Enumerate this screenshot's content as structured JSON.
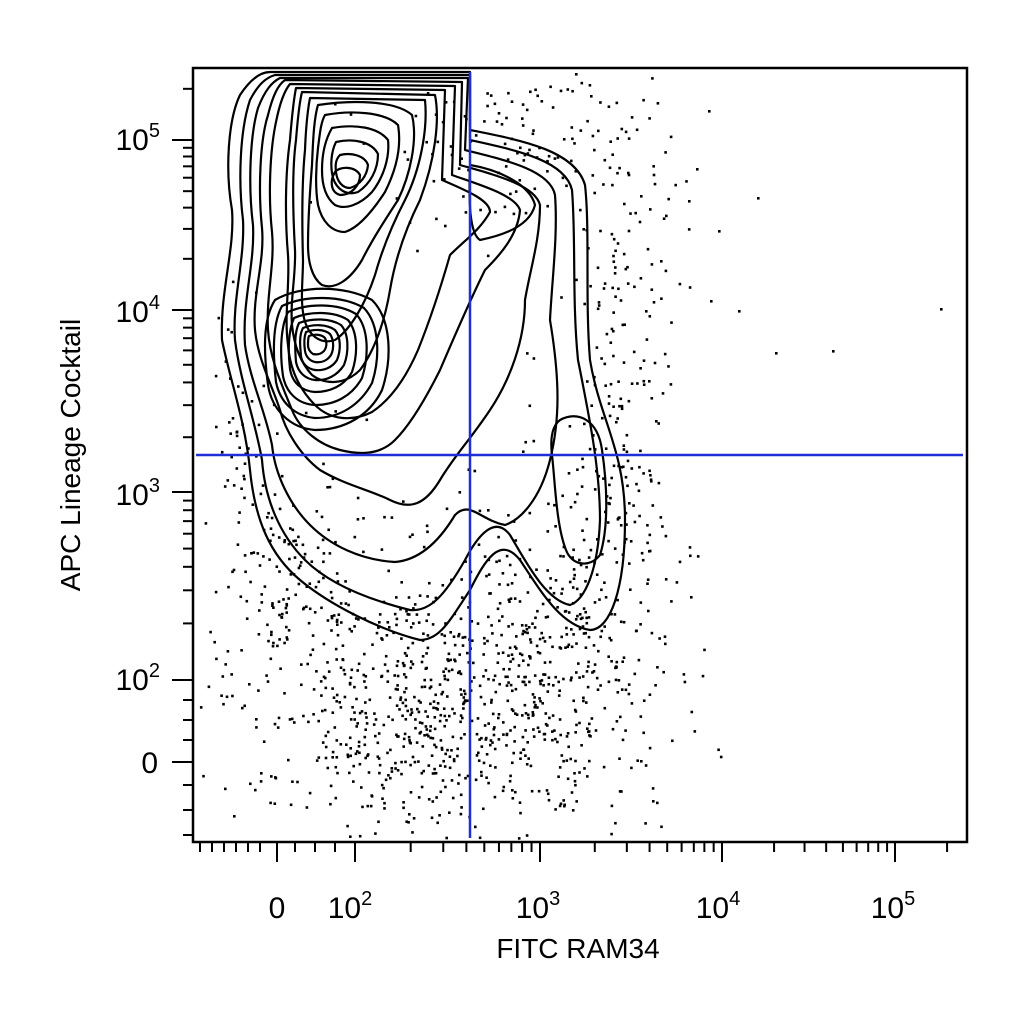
{
  "chart_data": {
    "type": "scatter",
    "subtype": "flow-cytometry-contour",
    "title": "",
    "xlabel": "FITC RAM34",
    "ylabel": "APC Lineage Cocktail",
    "xscale": "biexponential",
    "yscale": "biexponential",
    "x_ticks": [
      {
        "base": "0",
        "exp": ""
      },
      {
        "base": "10",
        "exp": "2"
      },
      {
        "base": "10",
        "exp": "3"
      },
      {
        "base": "10",
        "exp": "4"
      },
      {
        "base": "10",
        "exp": "5"
      }
    ],
    "y_ticks": [
      {
        "base": "0",
        "exp": ""
      },
      {
        "base": "10",
        "exp": "2"
      },
      {
        "base": "10",
        "exp": "3"
      },
      {
        "base": "10",
        "exp": "4"
      },
      {
        "base": "10",
        "exp": "5"
      }
    ],
    "gates": {
      "vertical_x": 400,
      "horizontal_y": 1600,
      "color": "#1f2fd6"
    },
    "populations": [
      {
        "x_center": 80,
        "y_center": 55000,
        "label": "upper-left dense population"
      },
      {
        "x_center": 50,
        "y_center": 6500,
        "label": "mid-left dense population"
      },
      {
        "x_center": 1500,
        "y_center": 1000,
        "label": "right lower population"
      }
    ],
    "grid": false,
    "legend": "none"
  }
}
